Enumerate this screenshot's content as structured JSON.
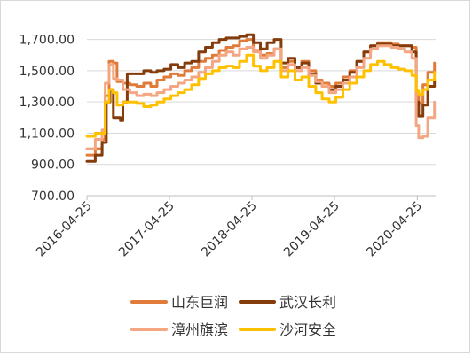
{
  "chart_data": {
    "type": "line",
    "title": "",
    "xlabel": "",
    "ylabel": "",
    "ylim": [
      700,
      1800
    ],
    "y_ticks": [
      "700.00",
      "900.00",
      "1,100.00",
      "1,300.00",
      "1,500.00",
      "1,700.00"
    ],
    "y_tick_values": [
      700,
      900,
      1100,
      1300,
      1500,
      1700
    ],
    "x_ticks": [
      "2016-04-25",
      "2017-04-25",
      "2018-04-25",
      "2019-04-25",
      "2020-04-25"
    ],
    "x_tick_values": [
      "2016-04-25",
      "2017-04-25",
      "2018-04-25",
      "2019-04-25",
      "2020-04-25"
    ],
    "x_range": [
      "2016-04-25",
      "2020-07-15"
    ],
    "grid": "horizontal",
    "legend_position": "bottom",
    "series": [
      {
        "name": "山东巨润",
        "color": "#E07B39",
        "points": [
          [
            "2016-04-25",
            960
          ],
          [
            "2016-06-01",
            1000
          ],
          [
            "2016-07-01",
            1060
          ],
          [
            "2016-07-15",
            1340
          ],
          [
            "2016-08-01",
            1560
          ],
          [
            "2016-08-20",
            1550
          ],
          [
            "2016-09-05",
            1430
          ],
          [
            "2016-10-01",
            1420
          ],
          [
            "2016-11-01",
            1410
          ],
          [
            "2016-12-01",
            1400
          ],
          [
            "2017-01-01",
            1420
          ],
          [
            "2017-02-01",
            1400
          ],
          [
            "2017-03-01",
            1440
          ],
          [
            "2017-04-01",
            1460
          ],
          [
            "2017-05-01",
            1480
          ],
          [
            "2017-06-01",
            1470
          ],
          [
            "2017-07-01",
            1500
          ],
          [
            "2017-08-01",
            1520
          ],
          [
            "2017-09-01",
            1560
          ],
          [
            "2017-10-01",
            1580
          ],
          [
            "2017-11-01",
            1600
          ],
          [
            "2017-12-01",
            1630
          ],
          [
            "2018-01-01",
            1650
          ],
          [
            "2018-02-01",
            1660
          ],
          [
            "2018-03-01",
            1690
          ],
          [
            "2018-04-01",
            1700
          ],
          [
            "2018-05-01",
            1630
          ],
          [
            "2018-06-01",
            1600
          ],
          [
            "2018-07-01",
            1610
          ],
          [
            "2018-08-01",
            1640
          ],
          [
            "2018-09-01",
            1520
          ],
          [
            "2018-10-01",
            1560
          ],
          [
            "2018-11-01",
            1520
          ],
          [
            "2018-12-01",
            1560
          ],
          [
            "2019-01-01",
            1500
          ],
          [
            "2019-02-01",
            1440
          ],
          [
            "2019-03-01",
            1420
          ],
          [
            "2019-04-01",
            1400
          ],
          [
            "2019-05-01",
            1420
          ],
          [
            "2019-06-01",
            1460
          ],
          [
            "2019-07-01",
            1500
          ],
          [
            "2019-08-01",
            1560
          ],
          [
            "2019-09-01",
            1620
          ],
          [
            "2019-10-01",
            1660
          ],
          [
            "2019-11-01",
            1680
          ],
          [
            "2019-12-01",
            1680
          ],
          [
            "2020-01-01",
            1670
          ],
          [
            "2020-02-01",
            1660
          ],
          [
            "2020-03-01",
            1660
          ],
          [
            "2020-04-01",
            1650
          ],
          [
            "2020-04-20",
            1350
          ],
          [
            "2020-05-01",
            1290
          ],
          [
            "2020-05-20",
            1410
          ],
          [
            "2020-06-10",
            1490
          ],
          [
            "2020-07-10",
            1550
          ]
        ]
      },
      {
        "name": "武汉长利",
        "color": "#843C0C",
        "points": [
          [
            "2016-04-25",
            920
          ],
          [
            "2016-06-01",
            960
          ],
          [
            "2016-07-01",
            1040
          ],
          [
            "2016-07-20",
            1300
          ],
          [
            "2016-08-05",
            1380
          ],
          [
            "2016-08-20",
            1200
          ],
          [
            "2016-09-20",
            1180
          ],
          [
            "2016-10-01",
            1300
          ],
          [
            "2016-10-20",
            1480
          ],
          [
            "2016-11-20",
            1480
          ],
          [
            "2017-01-01",
            1500
          ],
          [
            "2017-02-01",
            1490
          ],
          [
            "2017-03-01",
            1500
          ],
          [
            "2017-04-01",
            1510
          ],
          [
            "2017-05-01",
            1540
          ],
          [
            "2017-06-01",
            1520
          ],
          [
            "2017-07-01",
            1550
          ],
          [
            "2017-08-01",
            1560
          ],
          [
            "2017-09-01",
            1620
          ],
          [
            "2017-10-01",
            1650
          ],
          [
            "2017-11-01",
            1680
          ],
          [
            "2017-12-01",
            1700
          ],
          [
            "2018-01-01",
            1710
          ],
          [
            "2018-02-01",
            1710
          ],
          [
            "2018-03-01",
            1720
          ],
          [
            "2018-04-01",
            1730
          ],
          [
            "2018-05-01",
            1680
          ],
          [
            "2018-06-01",
            1640
          ],
          [
            "2018-07-01",
            1680
          ],
          [
            "2018-08-01",
            1700
          ],
          [
            "2018-09-01",
            1550
          ],
          [
            "2018-10-01",
            1580
          ],
          [
            "2018-11-01",
            1520
          ],
          [
            "2018-12-01",
            1550
          ],
          [
            "2019-01-01",
            1480
          ],
          [
            "2019-02-01",
            1420
          ],
          [
            "2019-03-01",
            1400
          ],
          [
            "2019-04-01",
            1380
          ],
          [
            "2019-05-01",
            1400
          ],
          [
            "2019-06-01",
            1440
          ],
          [
            "2019-07-01",
            1490
          ],
          [
            "2019-08-01",
            1560
          ],
          [
            "2019-09-01",
            1620
          ],
          [
            "2019-10-01",
            1660
          ],
          [
            "2019-11-01",
            1670
          ],
          [
            "2019-12-01",
            1670
          ],
          [
            "2020-01-01",
            1660
          ],
          [
            "2020-02-01",
            1660
          ],
          [
            "2020-03-01",
            1660
          ],
          [
            "2020-04-01",
            1620
          ],
          [
            "2020-04-20",
            1300
          ],
          [
            "2020-05-01",
            1210
          ],
          [
            "2020-05-20",
            1280
          ],
          [
            "2020-06-10",
            1400
          ],
          [
            "2020-07-10",
            1440
          ]
        ]
      },
      {
        "name": "漳州旗滨",
        "color": "#F4A582",
        "points": [
          [
            "2016-04-25",
            1000
          ],
          [
            "2016-06-01",
            1060
          ],
          [
            "2016-07-01",
            1120
          ],
          [
            "2016-07-15",
            1420
          ],
          [
            "2016-08-01",
            1540
          ],
          [
            "2016-08-20",
            1450
          ],
          [
            "2016-09-05",
            1440
          ],
          [
            "2016-10-01",
            1380
          ],
          [
            "2016-11-01",
            1360
          ],
          [
            "2016-12-01",
            1340
          ],
          [
            "2017-01-01",
            1350
          ],
          [
            "2017-02-01",
            1340
          ],
          [
            "2017-03-01",
            1360
          ],
          [
            "2017-04-01",
            1380
          ],
          [
            "2017-05-01",
            1400
          ],
          [
            "2017-06-01",
            1420
          ],
          [
            "2017-07-01",
            1440
          ],
          [
            "2017-08-01",
            1460
          ],
          [
            "2017-09-01",
            1490
          ],
          [
            "2017-10-01",
            1520
          ],
          [
            "2017-11-01",
            1560
          ],
          [
            "2017-12-01",
            1600
          ],
          [
            "2018-01-01",
            1620
          ],
          [
            "2018-02-01",
            1600
          ],
          [
            "2018-03-01",
            1640
          ],
          [
            "2018-04-01",
            1650
          ],
          [
            "2018-05-01",
            1620
          ],
          [
            "2018-06-01",
            1580
          ],
          [
            "2018-07-01",
            1600
          ],
          [
            "2018-08-01",
            1640
          ],
          [
            "2018-09-01",
            1500
          ],
          [
            "2018-10-01",
            1540
          ],
          [
            "2018-11-01",
            1500
          ],
          [
            "2018-12-01",
            1520
          ],
          [
            "2019-01-01",
            1470
          ],
          [
            "2019-02-01",
            1430
          ],
          [
            "2019-03-01",
            1400
          ],
          [
            "2019-04-01",
            1360
          ],
          [
            "2019-05-01",
            1380
          ],
          [
            "2019-06-01",
            1420
          ],
          [
            "2019-07-01",
            1460
          ],
          [
            "2019-08-01",
            1520
          ],
          [
            "2019-09-01",
            1580
          ],
          [
            "2019-10-01",
            1640
          ],
          [
            "2019-11-01",
            1660
          ],
          [
            "2019-12-01",
            1660
          ],
          [
            "2020-01-01",
            1650
          ],
          [
            "2020-02-01",
            1640
          ],
          [
            "2020-03-01",
            1620
          ],
          [
            "2020-04-01",
            1580
          ],
          [
            "2020-04-20",
            1150
          ],
          [
            "2020-05-01",
            1070
          ],
          [
            "2020-05-20",
            1080
          ],
          [
            "2020-06-10",
            1200
          ],
          [
            "2020-07-10",
            1300
          ]
        ]
      },
      {
        "name": "沙河安全",
        "color": "#FFC000",
        "points": [
          [
            "2016-04-25",
            1080
          ],
          [
            "2016-06-01",
            1100
          ],
          [
            "2016-07-01",
            1100
          ],
          [
            "2016-07-15",
            1300
          ],
          [
            "2016-08-01",
            1380
          ],
          [
            "2016-08-20",
            1360
          ],
          [
            "2016-09-05",
            1280
          ],
          [
            "2016-10-01",
            1300
          ],
          [
            "2016-11-01",
            1300
          ],
          [
            "2016-12-01",
            1290
          ],
          [
            "2017-01-01",
            1270
          ],
          [
            "2017-02-01",
            1280
          ],
          [
            "2017-03-01",
            1300
          ],
          [
            "2017-04-01",
            1320
          ],
          [
            "2017-05-01",
            1340
          ],
          [
            "2017-06-01",
            1360
          ],
          [
            "2017-07-01",
            1380
          ],
          [
            "2017-08-01",
            1410
          ],
          [
            "2017-09-01",
            1450
          ],
          [
            "2017-10-01",
            1480
          ],
          [
            "2017-11-01",
            1500
          ],
          [
            "2017-12-01",
            1520
          ],
          [
            "2018-01-01",
            1530
          ],
          [
            "2018-02-01",
            1520
          ],
          [
            "2018-03-01",
            1560
          ],
          [
            "2018-04-01",
            1600
          ],
          [
            "2018-05-01",
            1530
          ],
          [
            "2018-06-01",
            1500
          ],
          [
            "2018-07-01",
            1520
          ],
          [
            "2018-08-01",
            1560
          ],
          [
            "2018-09-01",
            1460
          ],
          [
            "2018-10-01",
            1500
          ],
          [
            "2018-11-01",
            1440
          ],
          [
            "2018-12-01",
            1460
          ],
          [
            "2019-01-01",
            1400
          ],
          [
            "2019-02-01",
            1360
          ],
          [
            "2019-03-01",
            1320
          ],
          [
            "2019-04-01",
            1300
          ],
          [
            "2019-05-01",
            1330
          ],
          [
            "2019-06-01",
            1380
          ],
          [
            "2019-07-01",
            1420
          ],
          [
            "2019-08-01",
            1460
          ],
          [
            "2019-09-01",
            1500
          ],
          [
            "2019-10-01",
            1540
          ],
          [
            "2019-11-01",
            1560
          ],
          [
            "2019-12-01",
            1540
          ],
          [
            "2020-01-01",
            1520
          ],
          [
            "2020-02-01",
            1510
          ],
          [
            "2020-03-01",
            1500
          ],
          [
            "2020-04-01",
            1470
          ],
          [
            "2020-04-20",
            1370
          ],
          [
            "2020-05-01",
            1350
          ],
          [
            "2020-05-20",
            1380
          ],
          [
            "2020-06-10",
            1440
          ],
          [
            "2020-07-10",
            1490
          ]
        ]
      }
    ]
  }
}
